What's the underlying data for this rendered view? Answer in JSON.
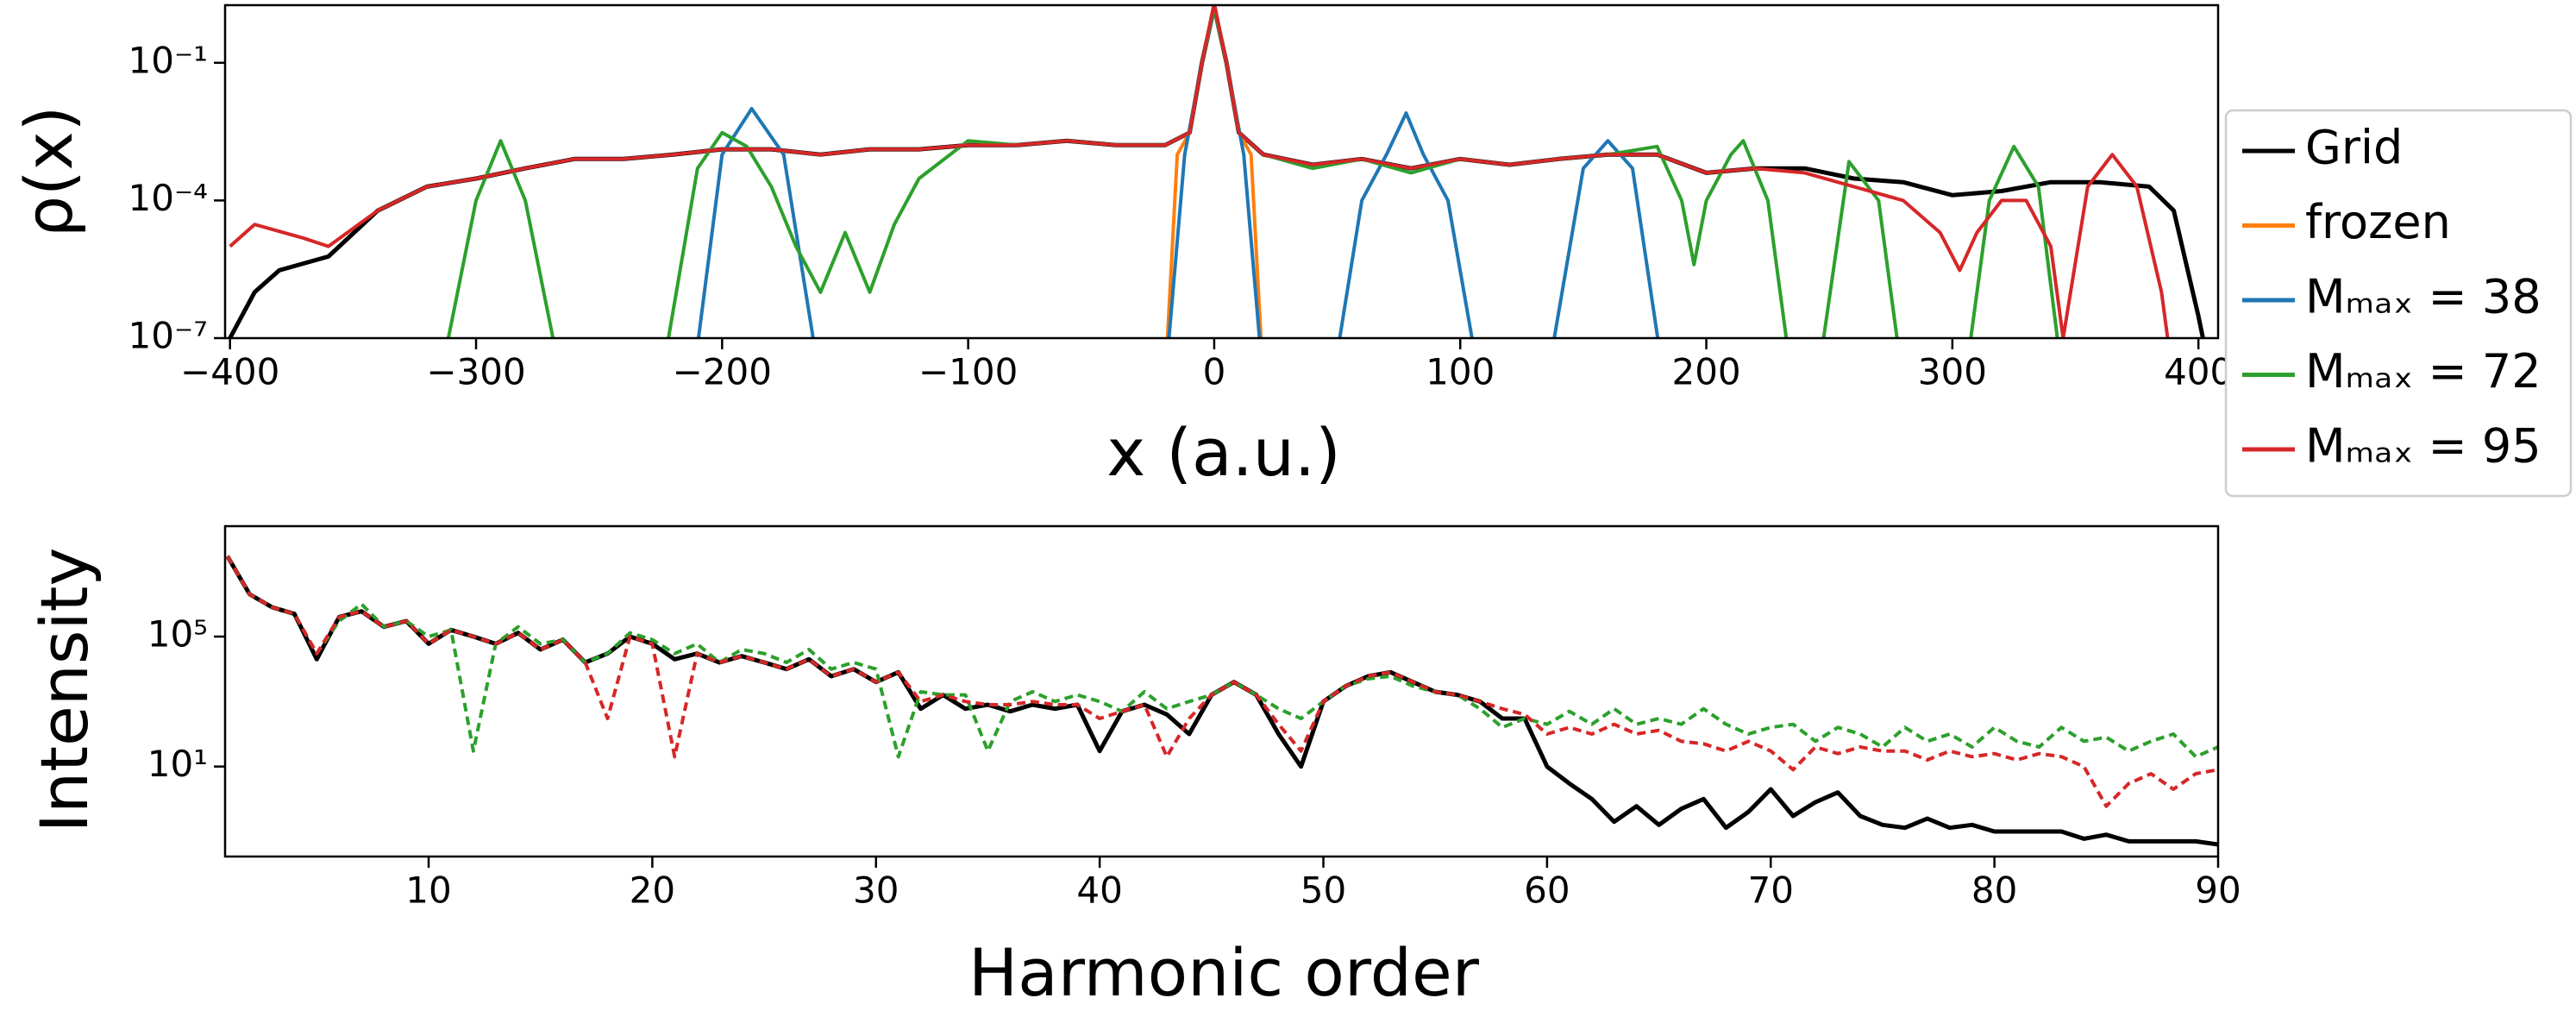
{
  "chart_data": [
    {
      "type": "line",
      "xlabel": "x (a.u.)",
      "ylabel": "ρ(x)",
      "log_y": true,
      "legend": "outside right",
      "xlim": [
        -402,
        408
      ],
      "ylim": [
        1e-07,
        1.8
      ],
      "xticks": [
        {
          "value": -400,
          "label": "−400"
        },
        {
          "value": -300,
          "label": "−300"
        },
        {
          "value": -200,
          "label": "−200"
        },
        {
          "value": -100,
          "label": "−100"
        },
        0,
        100,
        200,
        300,
        400
      ],
      "yticks": [
        {
          "value": 1e-07,
          "label": "10⁻⁷"
        },
        {
          "value": 0.0001,
          "label": "10⁻⁴"
        },
        {
          "value": 0.1,
          "label": "10⁻¹"
        }
      ],
      "series": [
        {
          "name": "Grid",
          "color": "#000000",
          "x": [
            -403,
            -390,
            -380,
            -360,
            -340,
            -320,
            -300,
            -280,
            -260,
            -240,
            -220,
            -200,
            -180,
            -160,
            -140,
            -120,
            -100,
            -80,
            -60,
            -40,
            -20,
            -10,
            -5,
            0,
            5,
            10,
            20,
            40,
            60,
            80,
            100,
            120,
            140,
            160,
            180,
            200,
            220,
            240,
            260,
            280,
            300,
            320,
            340,
            360,
            380,
            390,
            400,
            403
          ],
          "values": [
            5e-08,
            1e-06,
            3e-06,
            6e-06,
            6e-05,
            0.0002,
            0.0003,
            0.0005,
            0.0008,
            0.0008,
            0.001,
            0.0013,
            0.0013,
            0.001,
            0.0013,
            0.0013,
            0.0016,
            0.0016,
            0.002,
            0.0016,
            0.0016,
            0.003,
            0.1,
            1.6,
            0.1,
            0.003,
            0.001,
            0.0006,
            0.0008,
            0.0005,
            0.0008,
            0.0006,
            0.0008,
            0.001,
            0.001,
            0.0004,
            0.0005,
            0.0005,
            0.0003,
            0.00025,
            0.00013,
            0.00016,
            0.00025,
            0.00025,
            0.0002,
            6e-05,
            3e-07,
            5e-08
          ]
        },
        {
          "name": "frozen",
          "color": "#ff7f0e",
          "x": [
            -20,
            -15,
            -10,
            -5,
            0,
            5,
            10,
            15,
            20
          ],
          "values": [
            1e-08,
            0.001,
            0.003,
            0.1,
            1.5,
            0.1,
            0.003,
            0.001,
            1e-08
          ]
        },
        {
          "name": "Mₘₐₓ = 38",
          "color": "#1f77b4",
          "x": [
            -212,
            -200,
            -188,
            -175,
            -160,
            -20,
            -12,
            -5,
            0,
            5,
            12,
            20,
            48,
            60,
            70,
            78,
            85,
            95,
            108,
            135,
            150,
            160,
            170,
            183
          ],
          "values": [
            1e-08,
            0.001,
            0.01,
            0.001,
            1e-08,
            1e-08,
            0.001,
            0.1,
            1.5,
            0.1,
            0.001,
            1e-08,
            1e-08,
            0.0001,
            0.001,
            0.008,
            0.001,
            0.0001,
            1e-08,
            1e-08,
            0.0005,
            0.002,
            0.0005,
            1e-08
          ]
        },
        {
          "name": "Mₘₐₓ = 72",
          "color": "#2ca02c",
          "x": [
            -315,
            -300,
            -290,
            -280,
            -265,
            -225,
            -210,
            -200,
            -190,
            -180,
            -170,
            -160,
            -150,
            -140,
            -130,
            -120,
            -100,
            -80,
            -60,
            -40,
            -20,
            -10,
            -5,
            0,
            5,
            10,
            20,
            40,
            60,
            80,
            100,
            120,
            140,
            160,
            180,
            190,
            195,
            200,
            210,
            215,
            225,
            235,
            245,
            258,
            270,
            280,
            305,
            315,
            325,
            335,
            345
          ],
          "values": [
            1e-08,
            0.0001,
            0.002,
            0.0001,
            1e-08,
            1e-08,
            0.0005,
            0.003,
            0.0015,
            0.0002,
            1e-05,
            1e-06,
            2e-05,
            1e-06,
            3e-05,
            0.0003,
            0.002,
            0.0016,
            0.002,
            0.0016,
            0.0016,
            0.003,
            0.1,
            1.6,
            0.1,
            0.003,
            0.001,
            0.0005,
            0.0008,
            0.0004,
            0.0008,
            0.0006,
            0.0008,
            0.001,
            0.0015,
            0.0001,
            4e-06,
            0.0001,
            0.001,
            0.002,
            0.0001,
            1e-08,
            1e-08,
            0.0007,
            0.0001,
            1e-08,
            1e-08,
            0.0001,
            0.0015,
            0.0002,
            1e-08
          ]
        },
        {
          "name": "Mₘₐₓ = 95",
          "color": "#d62728",
          "x": [
            -400,
            -390,
            -370,
            -360,
            -340,
            -320,
            -300,
            -280,
            -260,
            -240,
            -220,
            -200,
            -180,
            -160,
            -140,
            -120,
            -100,
            -80,
            -60,
            -40,
            -20,
            -10,
            -5,
            0,
            5,
            10,
            20,
            40,
            60,
            80,
            100,
            120,
            140,
            160,
            180,
            200,
            220,
            240,
            260,
            280,
            295,
            303,
            310,
            320,
            330,
            340,
            345,
            355,
            365,
            375,
            385,
            390
          ],
          "values": [
            1e-05,
            3e-05,
            1.5e-05,
            1e-05,
            6e-05,
            0.0002,
            0.0003,
            0.0005,
            0.0008,
            0.0008,
            0.001,
            0.0013,
            0.0013,
            0.001,
            0.0013,
            0.0013,
            0.0016,
            0.0016,
            0.002,
            0.0016,
            0.0016,
            0.003,
            0.1,
            2,
            0.1,
            0.003,
            0.001,
            0.0006,
            0.0008,
            0.0005,
            0.0008,
            0.0006,
            0.0008,
            0.001,
            0.001,
            0.0004,
            0.0005,
            0.0004,
            0.0002,
            0.0001,
            2e-05,
            3e-06,
            2e-05,
            0.0001,
            0.0001,
            1e-05,
            1e-07,
            0.0002,
            0.001,
            0.0002,
            1e-06,
            1e-08
          ]
        }
      ]
    },
    {
      "type": "line",
      "xlabel": "Harmonic order",
      "ylabel": "Intensity",
      "log_y": true,
      "xlim": [
        0.9,
        90
      ],
      "ylim": [
        0.017,
        250000000.0
      ],
      "xticks": [
        10,
        20,
        30,
        40,
        50,
        60,
        70,
        80,
        90
      ],
      "yticks": [
        {
          "value": 10,
          "label": "10¹"
        },
        {
          "value": 100000,
          "label": "10⁵"
        }
      ],
      "x": [
        1,
        2,
        3,
        4,
        5,
        6,
        7,
        8,
        9,
        10,
        11,
        12,
        13,
        14,
        15,
        16,
        17,
        18,
        19,
        20,
        21,
        22,
        23,
        24,
        25,
        26,
        27,
        28,
        29,
        30,
        31,
        32,
        33,
        34,
        35,
        36,
        37,
        38,
        39,
        40,
        41,
        42,
        43,
        44,
        45,
        46,
        47,
        48,
        49,
        50,
        51,
        52,
        53,
        54,
        55,
        56,
        57,
        58,
        59,
        60,
        61,
        62,
        63,
        64,
        65,
        66,
        67,
        68,
        69,
        70,
        71,
        72,
        73,
        74,
        75,
        76,
        77,
        78,
        79,
        80,
        81,
        82,
        83,
        84,
        85,
        86,
        87,
        88,
        89,
        90
      ],
      "series": [
        {
          "color": "#000000",
          "dashed": false,
          "values": [
            30000000.0,
            2000000.0,
            800000.0,
            500000.0,
            20000.0,
            400000.0,
            600000.0,
            200000.0,
            300000.0,
            60000.0,
            160000.0,
            100000.0,
            60000.0,
            130000.0,
            40000.0,
            80000.0,
            16000.0,
            30000.0,
            100000.0,
            60000.0,
            20000.0,
            30000.0,
            16000.0,
            25000.0,
            16000.0,
            10000.0,
            20000.0,
            6000.0,
            10000.0,
            4000.0,
            8000.0,
            600.0,
            1600.0,
            600.0,
            800.0,
            500.0,
            800.0,
            600.0,
            800.0,
            30,
            500.0,
            800.0,
            400.0,
            100.0,
            1600.0,
            4000.0,
            1600.0,
            100.0,
            10,
            1000.0,
            3000.0,
            6000.0,
            8000.0,
            4000.0,
            2000.0,
            1600.0,
            1000.0,
            300.0,
            300.0,
            10,
            3,
            1,
            0.2,
            0.6,
            0.16,
            0.5,
            1,
            0.13,
            0.4,
            2,
            0.3,
            0.8,
            1.6,
            0.3,
            0.16,
            0.13,
            0.25,
            0.13,
            0.16,
            0.1,
            0.1,
            0.1,
            0.1,
            0.06,
            0.08,
            0.05,
            0.05,
            0.05,
            0.05,
            0.04
          ]
        },
        {
          "color": "#2ca02c",
          "dashed": true,
          "values": [
            30000000.0,
            2000000.0,
            800000.0,
            500000.0,
            30000.0,
            300000.0,
            1000000.0,
            200000.0,
            300000.0,
            100000.0,
            160000.0,
            30,
            60000.0,
            200000.0,
            60000.0,
            80000.0,
            16000.0,
            30000.0,
            130000.0,
            80000.0,
            30000.0,
            60000.0,
            16000.0,
            40000.0,
            30000.0,
            16000.0,
            40000.0,
            10000.0,
            16000.0,
            10000.0,
            20,
            2000.0,
            1600.0,
            1600.0,
            30,
            1000.0,
            2000.0,
            1000.0,
            1600.0,
            1000.0,
            500.0,
            2000.0,
            600.0,
            1000.0,
            1600.0,
            4000.0,
            1600.0,
            600.0,
            300.0,
            1000.0,
            3000.0,
            5000.0,
            6000.0,
            3000.0,
            2000.0,
            1600.0,
            600.0,
            160.0,
            300.0,
            200.0,
            500.0,
            200.0,
            600.0,
            200.0,
            300.0,
            200.0,
            600.0,
            200.0,
            100.0,
            160.0,
            200.0,
            60,
            160.0,
            100.0,
            40,
            160.0,
            60,
            100.0,
            40,
            160.0,
            60,
            40,
            160.0,
            60,
            80,
            30,
            60,
            100.0,
            20,
            40
          ]
        },
        {
          "color": "#d62728",
          "dashed": true,
          "values": [
            30000000.0,
            2000000.0,
            800000.0,
            500000.0,
            30000.0,
            400000.0,
            600000.0,
            200000.0,
            300000.0,
            60000.0,
            160000.0,
            100000.0,
            60000.0,
            130000.0,
            40000.0,
            80000.0,
            16000.0,
            300.0,
            100000.0,
            60000.0,
            20,
            30000.0,
            16000.0,
            25000.0,
            16000.0,
            10000.0,
            20000.0,
            6000.0,
            10000.0,
            4000.0,
            8000.0,
            1000.0,
            1600.0,
            1000.0,
            800.0,
            800.0,
            1000.0,
            800.0,
            800.0,
            300.0,
            500.0,
            800.0,
            20,
            300.0,
            1600.0,
            4000.0,
            1600.0,
            200.0,
            30,
            1000.0,
            3000.0,
            6000.0,
            8000.0,
            4000.0,
            2000.0,
            1600.0,
            1000.0,
            600.0,
            400.0,
            100.0,
            160.0,
            100.0,
            200.0,
            100.0,
            130.0,
            60,
            50,
            30,
            60,
            30,
            8,
            40,
            25,
            40,
            30,
            30,
            16,
            30,
            20,
            25,
            16,
            25,
            20,
            10,
            0.6,
            3,
            6,
            2,
            6,
            8
          ]
        }
      ]
    }
  ]
}
